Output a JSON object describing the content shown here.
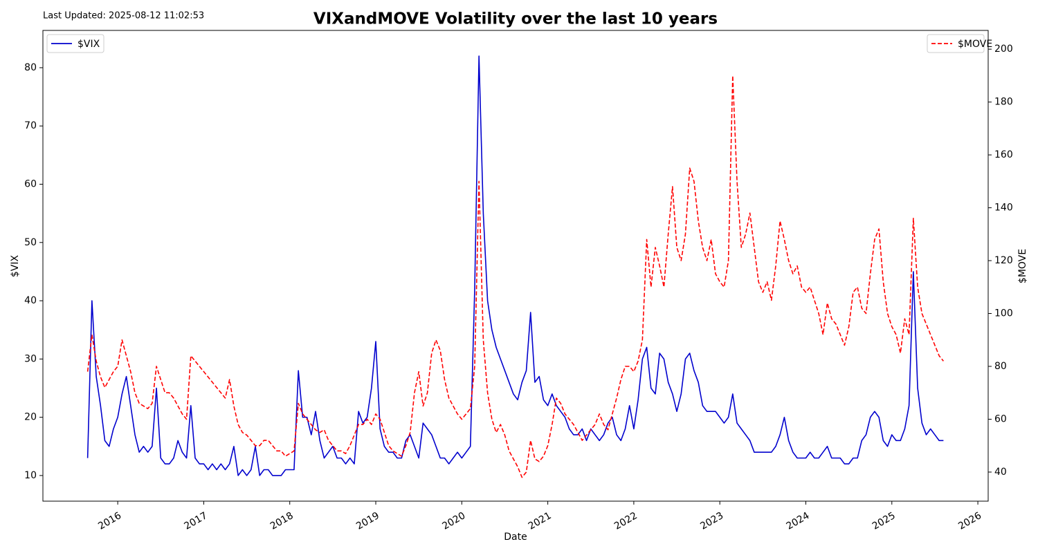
{
  "chart_data": {
    "type": "line",
    "title": "VIXandMOVE Volatility over the last 10 years",
    "annotation": "Last Updated: 2025-08-12 11:02:53",
    "xlabel": "Date",
    "ylabel": "$VIX",
    "y2label": "$MOVE",
    "xlim": [
      2015.13,
      2026.12
    ],
    "xticks": [
      2016,
      2017,
      2018,
      2019,
      2020,
      2021,
      2022,
      2023,
      2024,
      2025,
      2026
    ],
    "ylim": [
      5.6,
      86.4
    ],
    "yticks": [
      10,
      20,
      30,
      40,
      50,
      60,
      70,
      80
    ],
    "y2lim": [
      29,
      207.1
    ],
    "y2ticks": [
      40,
      60,
      80,
      100,
      120,
      140,
      160,
      180,
      200
    ],
    "legend": [
      "upper left",
      "upper right"
    ],
    "x": [
      2015.65,
      2015.7,
      2015.75,
      2015.8,
      2015.85,
      2015.9,
      2015.95,
      2016,
      2016.05,
      2016.1,
      2016.15,
      2016.2,
      2016.25,
      2016.3,
      2016.35,
      2016.4,
      2016.45,
      2016.5,
      2016.55,
      2016.6,
      2016.65,
      2016.7,
      2016.75,
      2016.8,
      2016.85,
      2016.9,
      2016.95,
      2017,
      2017.05,
      2017.1,
      2017.15,
      2017.2,
      2017.25,
      2017.3,
      2017.35,
      2017.4,
      2017.45,
      2017.5,
      2017.55,
      2017.6,
      2017.65,
      2017.7,
      2017.75,
      2017.8,
      2017.85,
      2017.9,
      2017.95,
      2018,
      2018.05,
      2018.1,
      2018.15,
      2018.2,
      2018.25,
      2018.3,
      2018.35,
      2018.4,
      2018.45,
      2018.5,
      2018.55,
      2018.6,
      2018.65,
      2018.7,
      2018.75,
      2018.8,
      2018.85,
      2018.9,
      2018.95,
      2019,
      2019.05,
      2019.1,
      2019.15,
      2019.2,
      2019.25,
      2019.3,
      2019.35,
      2019.4,
      2019.45,
      2019.5,
      2019.55,
      2019.6,
      2019.65,
      2019.7,
      2019.75,
      2019.8,
      2019.85,
      2019.9,
      2019.95,
      2020,
      2020.05,
      2020.1,
      2020.15,
      2020.2,
      2020.25,
      2020.3,
      2020.35,
      2020.4,
      2020.45,
      2020.5,
      2020.55,
      2020.6,
      2020.65,
      2020.7,
      2020.75,
      2020.8,
      2020.85,
      2020.9,
      2020.95,
      2021,
      2021.05,
      2021.1,
      2021.15,
      2021.2,
      2021.25,
      2021.3,
      2021.35,
      2021.4,
      2021.45,
      2021.5,
      2021.55,
      2021.6,
      2021.65,
      2021.7,
      2021.75,
      2021.8,
      2021.85,
      2021.9,
      2021.95,
      2022,
      2022.05,
      2022.1,
      2022.15,
      2022.2,
      2022.25,
      2022.3,
      2022.35,
      2022.4,
      2022.45,
      2022.5,
      2022.55,
      2022.6,
      2022.65,
      2022.7,
      2022.75,
      2022.8,
      2022.85,
      2022.9,
      2022.95,
      2023,
      2023.05,
      2023.1,
      2023.15,
      2023.2,
      2023.25,
      2023.3,
      2023.35,
      2023.4,
      2023.45,
      2023.5,
      2023.55,
      2023.6,
      2023.65,
      2023.7,
      2023.75,
      2023.8,
      2023.85,
      2023.9,
      2023.95,
      2024,
      2024.05,
      2024.1,
      2024.15,
      2024.2,
      2024.25,
      2024.3,
      2024.35,
      2024.4,
      2024.45,
      2024.5,
      2024.55,
      2024.6,
      2024.65,
      2024.7,
      2024.75,
      2024.8,
      2024.85,
      2024.9,
      2024.95,
      2025,
      2025.05,
      2025.1,
      2025.15,
      2025.2,
      2025.25,
      2025.3,
      2025.35,
      2025.4,
      2025.45,
      2025.5,
      2025.55,
      2025.6
    ],
    "series": [
      {
        "name": "$VIX",
        "color": "#0000cd",
        "linestyle": "solid",
        "axis": "y",
        "values": [
          13,
          40,
          27,
          22,
          16,
          15,
          18,
          20,
          24,
          27,
          22,
          17,
          14,
          15,
          14,
          15,
          25,
          13,
          12,
          12,
          13,
          16,
          14,
          13,
          22,
          13,
          12,
          12,
          11,
          12,
          11,
          12,
          11,
          12,
          15,
          10,
          11,
          10,
          11,
          15,
          10,
          11,
          11,
          10,
          10,
          10,
          11,
          11,
          11,
          28,
          20,
          20,
          17,
          21,
          16,
          13,
          14,
          15,
          13,
          13,
          12,
          13,
          12,
          21,
          19,
          20,
          25,
          33,
          18,
          15,
          14,
          14,
          13,
          13,
          16,
          17,
          15,
          13,
          19,
          18,
          17,
          15,
          13,
          13,
          12,
          13,
          14,
          13,
          14,
          15,
          42,
          82,
          55,
          40,
          35,
          32,
          30,
          28,
          26,
          24,
          23,
          26,
          28,
          38,
          26,
          27,
          23,
          22,
          24,
          22,
          21,
          20,
          18,
          17,
          17,
          18,
          16,
          18,
          17,
          16,
          17,
          19,
          20,
          17,
          16,
          18,
          22,
          18,
          23,
          30,
          32,
          25,
          24,
          31,
          30,
          26,
          24,
          21,
          24,
          30,
          31,
          28,
          26,
          22,
          21,
          21,
          21,
          20,
          19,
          20,
          24,
          19,
          18,
          17,
          16,
          14,
          14,
          14,
          14,
          14,
          15,
          17,
          20,
          16,
          14,
          13,
          13,
          13,
          14,
          13,
          13,
          14,
          15,
          13,
          13,
          13,
          12,
          12,
          13,
          13,
          16,
          17,
          20,
          21,
          20,
          16,
          15,
          17,
          16,
          16,
          18,
          22,
          45,
          25,
          19,
          17,
          18,
          17,
          16,
          16
        ]
      },
      {
        "name": "$MOVE",
        "color": "#ff0000",
        "linestyle": "dashed",
        "axis": "y2",
        "values": [
          78,
          92,
          82,
          76,
          72,
          75,
          78,
          80,
          90,
          84,
          78,
          70,
          66,
          65,
          64,
          66,
          80,
          75,
          70,
          70,
          68,
          65,
          62,
          60,
          84,
          82,
          80,
          78,
          76,
          74,
          72,
          70,
          68,
          75,
          65,
          58,
          55,
          54,
          52,
          50,
          50,
          52,
          52,
          50,
          48,
          48,
          46,
          47,
          48,
          66,
          62,
          60,
          58,
          56,
          55,
          56,
          52,
          50,
          48,
          48,
          47,
          50,
          54,
          58,
          58,
          60,
          58,
          62,
          60,
          55,
          50,
          48,
          47,
          46,
          50,
          55,
          70,
          78,
          65,
          70,
          85,
          90,
          86,
          75,
          68,
          65,
          62,
          60,
          62,
          64,
          80,
          150,
          90,
          70,
          60,
          55,
          58,
          54,
          48,
          45,
          42,
          38,
          40,
          52,
          45,
          44,
          46,
          50,
          58,
          68,
          66,
          62,
          60,
          58,
          55,
          52,
          54,
          56,
          58,
          62,
          58,
          56,
          62,
          68,
          75,
          80,
          80,
          78,
          82,
          90,
          128,
          110,
          125,
          118,
          110,
          130,
          148,
          125,
          120,
          130,
          155,
          150,
          135,
          125,
          120,
          128,
          115,
          112,
          110,
          120,
          190,
          150,
          125,
          130,
          138,
          125,
          112,
          108,
          112,
          105,
          118,
          135,
          128,
          120,
          115,
          118,
          110,
          108,
          110,
          105,
          100,
          92,
          104,
          98,
          96,
          92,
          88,
          95,
          108,
          110,
          102,
          100,
          115,
          128,
          132,
          112,
          100,
          95,
          92,
          85,
          98,
          92,
          136,
          110,
          100,
          96,
          92,
          88,
          84,
          82
        ]
      }
    ]
  }
}
